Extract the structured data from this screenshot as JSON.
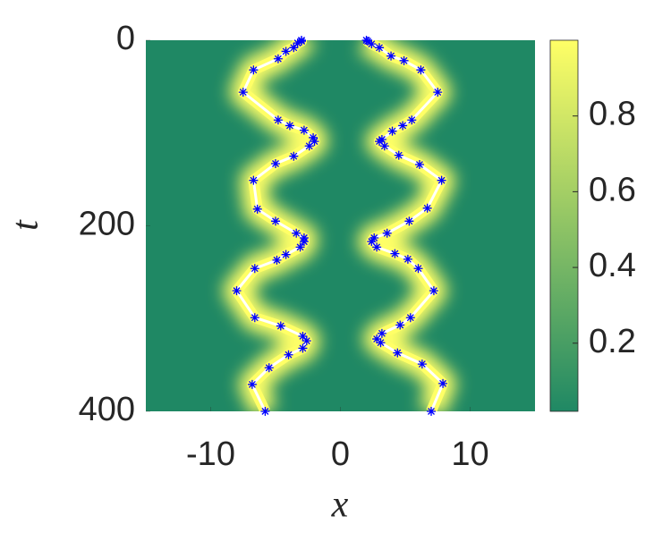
{
  "chart_data": {
    "type": "scatter",
    "xlabel": "x",
    "ylabel": "t",
    "xlim": [
      -15,
      15
    ],
    "ylim": [
      0,
      400
    ],
    "y_reversed": true,
    "xticks": [
      -10,
      0,
      10
    ],
    "yticks": [
      0,
      200,
      400
    ],
    "marker": "*",
    "trajectory_color": "#ffffff",
    "glow_color": "#ffff66",
    "colormap": [
      "#1f8864",
      "#ffff66"
    ],
    "colorbar": {
      "clim": [
        0.02,
        1
      ],
      "ticks": [
        0.2,
        0.4,
        0.6,
        0.8
      ]
    },
    "series": [
      {
        "color": "#0000ff",
        "x": [
          -3.0,
          -3.0,
          -3.3,
          -3.6,
          -4.2,
          -4.8,
          -6.7,
          -7.5,
          -4.8,
          -3.9,
          -2.8,
          -2.1,
          -2.0,
          -2.4,
          -3.6,
          -5.0,
          -6.7,
          -6.4,
          -5.0,
          -3.4,
          -2.8,
          -2.8,
          -3.1,
          -4.2,
          -4.9,
          -6.6,
          -8.0,
          -6.6,
          -4.6,
          -2.9,
          -2.6,
          -2.9,
          -4.0,
          -5.5,
          -6.8,
          -5.8
        ],
        "values": [
          0,
          1,
          3,
          8,
          12,
          20,
          32,
          56,
          86,
          92,
          97,
          105,
          109,
          114,
          125,
          133,
          151,
          182,
          195,
          208,
          213,
          217,
          223,
          231,
          237,
          246,
          270,
          299,
          308,
          319,
          324,
          332,
          339,
          353,
          371,
          400
        ]
      },
      {
        "color": "#0000ff",
        "x": [
          2.0,
          2.1,
          2.4,
          3.0,
          3.9,
          4.9,
          6.2,
          7.5,
          5.5,
          4.8,
          4.0,
          3.2,
          3.0,
          3.4,
          4.5,
          6.1,
          7.8,
          6.7,
          5.3,
          3.6,
          2.6,
          2.4,
          2.8,
          4.2,
          5.2,
          6.0,
          7.2,
          5.4,
          4.6,
          3.2,
          2.8,
          3.1,
          4.4,
          6.3,
          7.9,
          7.0
        ],
        "values": [
          0,
          1,
          4,
          8,
          17,
          22,
          32,
          56,
          86,
          92,
          98,
          107,
          109,
          114,
          124,
          134,
          151,
          181,
          195,
          208,
          213,
          217,
          223,
          230,
          236,
          246,
          270,
          299,
          307,
          316,
          322,
          326,
          337,
          349,
          370,
          400
        ]
      }
    ]
  }
}
